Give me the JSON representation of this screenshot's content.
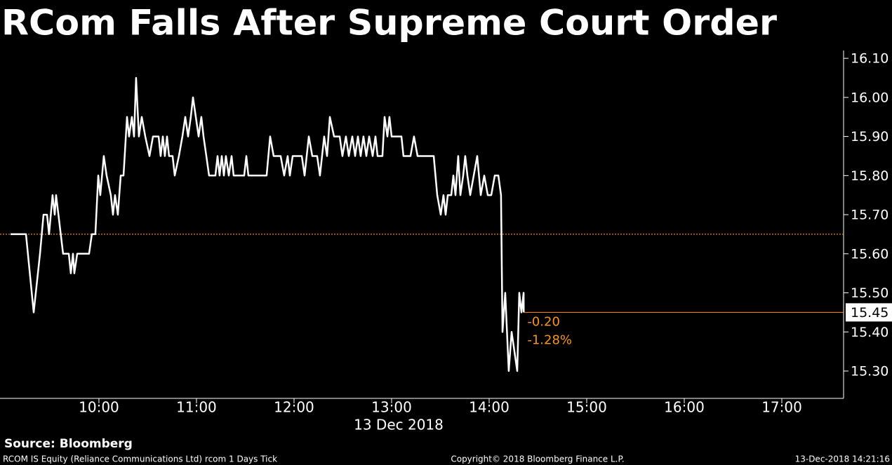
{
  "chart_data": {
    "type": "line",
    "title": "RCom Falls After Supreme Court Order",
    "x_axis_label": "13 Dec 2018",
    "color": "#ffffff",
    "x": [
      9.094,
      9.252,
      9.331,
      9.396,
      9.432,
      9.468,
      9.489,
      9.525,
      9.547,
      9.561,
      9.633,
      9.691,
      9.712,
      9.734,
      9.748,
      9.777,
      9.899,
      9.928,
      9.964,
      9.993,
      10.014,
      10.05,
      10.079,
      10.122,
      10.144,
      10.165,
      10.194,
      10.223,
      10.252,
      10.288,
      10.309,
      10.338,
      10.36,
      10.381,
      10.41,
      10.439,
      10.475,
      10.518,
      10.554,
      10.612,
      10.633,
      10.655,
      10.676,
      10.698,
      10.719,
      10.755,
      10.777,
      10.82,
      10.856,
      10.885,
      10.914,
      10.942,
      10.964,
      10.993,
      11.022,
      11.05,
      11.072,
      11.101,
      11.129,
      11.194,
      11.216,
      11.237,
      11.259,
      11.281,
      11.302,
      11.331,
      11.36,
      11.381,
      11.489,
      11.511,
      11.532,
      11.719,
      11.755,
      11.791,
      11.863,
      11.899,
      11.935,
      11.957,
      11.986,
      12.079,
      12.108,
      12.151,
      12.187,
      12.237,
      12.266,
      12.309,
      12.338,
      12.367,
      12.41,
      12.468,
      12.496,
      12.532,
      12.561,
      12.597,
      12.626,
      12.655,
      12.683,
      12.712,
      12.741,
      12.77,
      12.806,
      12.835,
      12.856,
      12.906,
      12.928,
      12.957,
      12.978,
      13.0,
      13.101,
      13.122,
      13.194,
      13.23,
      13.266,
      13.432,
      13.468,
      13.504,
      13.532,
      13.554,
      13.576,
      13.612,
      13.633,
      13.655,
      13.683,
      13.705,
      13.734,
      13.755,
      13.777,
      13.806,
      13.842,
      13.878,
      13.914,
      13.95,
      13.986,
      14.022,
      14.058,
      14.094,
      14.122,
      14.137,
      14.165,
      14.201,
      14.23,
      14.259,
      14.288,
      14.309,
      14.331,
      14.353,
      14.355
    ],
    "values": [
      15.65,
      15.65,
      15.45,
      15.6,
      15.7,
      15.7,
      15.65,
      15.75,
      15.7,
      15.75,
      15.6,
      15.6,
      15.55,
      15.6,
      15.55,
      15.6,
      15.6,
      15.65,
      15.65,
      15.8,
      15.75,
      15.85,
      15.8,
      15.75,
      15.7,
      15.75,
      15.7,
      15.8,
      15.8,
      15.95,
      15.9,
      15.95,
      15.9,
      16.05,
      15.9,
      15.95,
      15.9,
      15.85,
      15.9,
      15.9,
      15.85,
      15.9,
      15.85,
      15.9,
      15.85,
      15.85,
      15.8,
      15.85,
      15.9,
      15.95,
      15.9,
      15.95,
      16.0,
      15.95,
      15.9,
      15.95,
      15.9,
      15.85,
      15.8,
      15.8,
      15.85,
      15.8,
      15.85,
      15.8,
      15.85,
      15.8,
      15.85,
      15.8,
      15.8,
      15.85,
      15.8,
      15.8,
      15.9,
      15.85,
      15.85,
      15.8,
      15.85,
      15.8,
      15.85,
      15.85,
      15.8,
      15.9,
      15.85,
      15.85,
      15.8,
      15.9,
      15.85,
      15.95,
      15.9,
      15.9,
      15.85,
      15.9,
      15.85,
      15.9,
      15.85,
      15.9,
      15.85,
      15.9,
      15.85,
      15.9,
      15.85,
      15.9,
      15.85,
      15.85,
      15.95,
      15.9,
      15.95,
      15.9,
      15.9,
      15.85,
      15.85,
      15.9,
      15.85,
      15.85,
      15.75,
      15.7,
      15.75,
      15.7,
      15.75,
      15.75,
      15.8,
      15.75,
      15.85,
      15.75,
      15.8,
      15.85,
      15.8,
      15.75,
      15.8,
      15.85,
      15.75,
      15.8,
      15.75,
      15.75,
      15.8,
      15.8,
      15.75,
      15.4,
      15.5,
      15.3,
      15.4,
      15.35,
      15.3,
      15.5,
      15.45,
      15.5,
      15.45
    ],
    "xlim": [
      8.986,
      17.633
    ],
    "xticks": [
      {
        "value": 10,
        "label": "10:00"
      },
      {
        "value": 11,
        "label": "11:00"
      },
      {
        "value": 12,
        "label": "12:00"
      },
      {
        "value": 13,
        "label": "13:00"
      },
      {
        "value": 14,
        "label": "14:00"
      },
      {
        "value": 15,
        "label": "15:00"
      },
      {
        "value": 16,
        "label": "16:00"
      },
      {
        "value": 17,
        "label": "17:00"
      }
    ],
    "ylim": [
      15.23,
      16.12
    ],
    "yticks": [
      {
        "value": 15.3,
        "label": "15.30"
      },
      {
        "value": 15.4,
        "label": "15.40"
      },
      {
        "value": 15.5,
        "label": "15.50"
      },
      {
        "value": 15.6,
        "label": "15.60"
      },
      {
        "value": 15.7,
        "label": "15.70"
      },
      {
        "value": 15.8,
        "label": "15.80"
      },
      {
        "value": 15.9,
        "label": "15.90"
      },
      {
        "value": 16.0,
        "label": "16.00"
      },
      {
        "value": 16.1,
        "label": "16.10"
      }
    ],
    "reference_line": 15.65,
    "reference_color": "#f7941d",
    "last_price": {
      "value": 15.45,
      "label": "15.45"
    },
    "change": "-0.20",
    "change_pct": "-1.28%",
    "source": "Source: Bloomberg",
    "footer_left": "RCOM IS Equity (Reliance Communications Ltd) rcom 1 Days  Tick",
    "footer_center": "Copyright© 2018 Bloomberg Finance L.P.",
    "footer_right": "13-Dec-2018 14:21:16"
  }
}
